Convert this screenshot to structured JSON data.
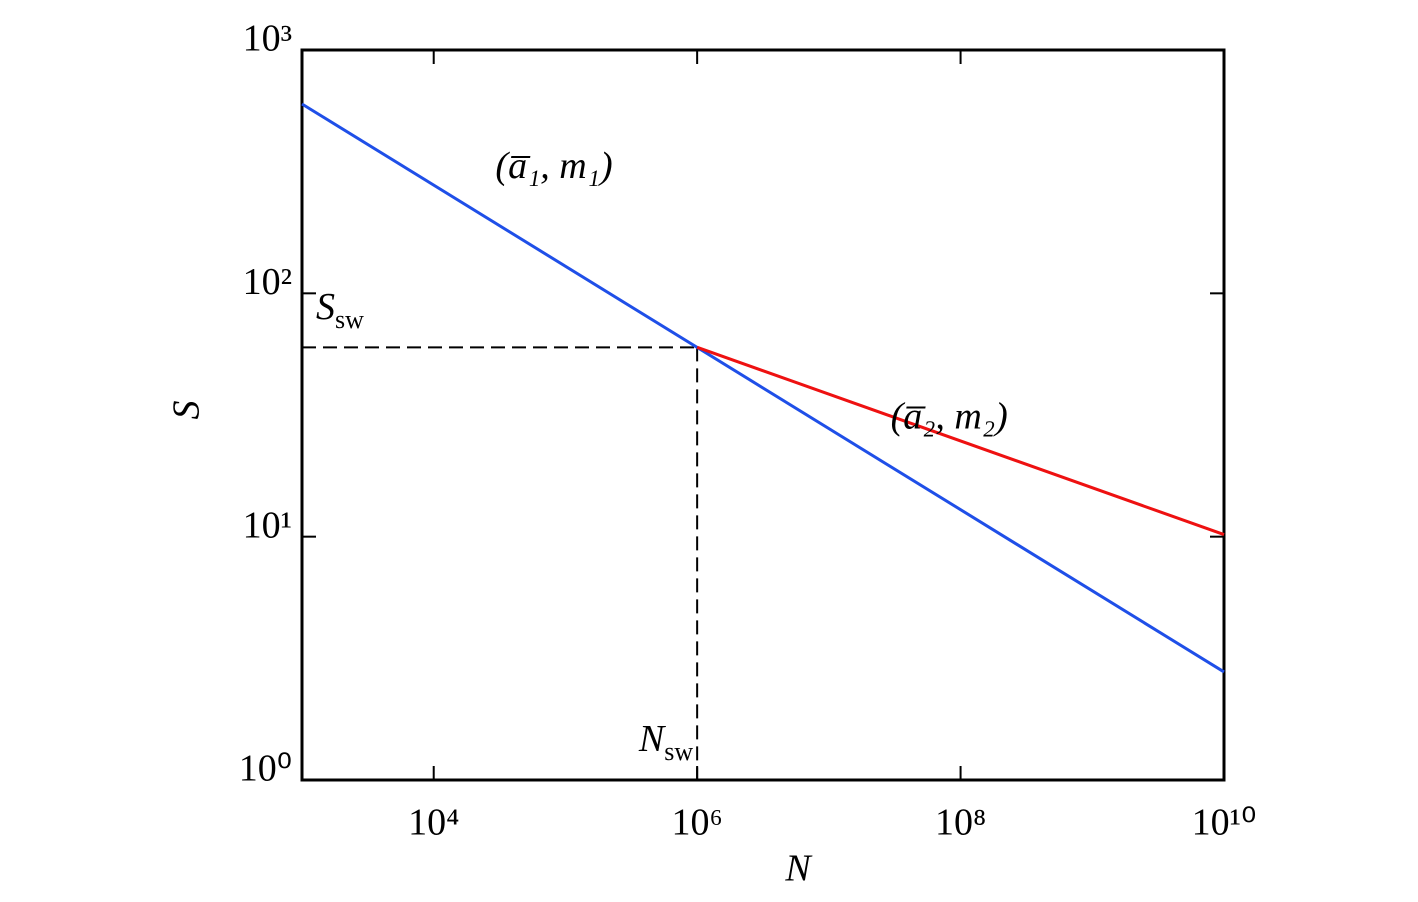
{
  "chart_data": {
    "type": "line",
    "x_label": "N",
    "y_label": "S",
    "xscale": "log",
    "yscale": "log",
    "xlim": [
      1000,
      10000000000
    ],
    "ylim": [
      1,
      1000
    ],
    "xticks": [
      {
        "value": 10000,
        "label": "10⁴"
      },
      {
        "value": 1000000,
        "label": "10⁶"
      },
      {
        "value": 100000000,
        "label": "10⁸"
      },
      {
        "value": 10000000000,
        "label": "10¹⁰"
      }
    ],
    "yticks": [
      {
        "value": 1,
        "label": "10⁰"
      },
      {
        "value": 10,
        "label": "10¹"
      },
      {
        "value": 100,
        "label": "10²"
      },
      {
        "value": 1000,
        "label": "10³"
      }
    ],
    "series": [
      {
        "color": "#1f4fe8",
        "x": [
          1000,
          10000000000
        ],
        "values": [
          600,
          2.78
        ]
      },
      {
        "color": "#ee1111",
        "x": [
          1000000,
          10000000000
        ],
        "values": [
          60,
          10.2
        ]
      }
    ],
    "reference": {
      "x": 1000000,
      "y": 60,
      "x_label": {
        "text": "N",
        "sub": "sw"
      },
      "y_label": {
        "text": "S",
        "sub": "sw"
      }
    },
    "annotations": [
      {
        "text": "(a̅₁, m₁)",
        "x": 100000,
        "y": 300
      },
      {
        "text": "(a̅₂, m₂)",
        "x": 100000000,
        "y": 28
      }
    ]
  }
}
